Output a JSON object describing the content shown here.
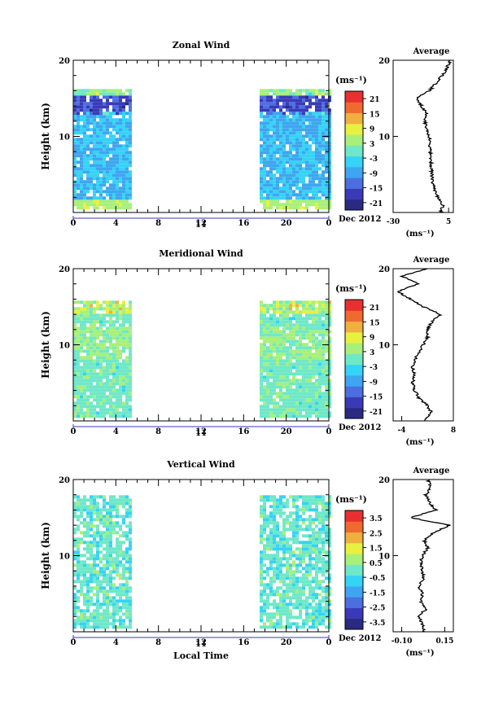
{
  "page_title": "",
  "date_label": "Dec 2012",
  "day_label": "11",
  "xlabel_bottom": "Local Time",
  "time_ticks": [
    "0",
    "4",
    "8",
    "12",
    "16",
    "20",
    "0"
  ],
  "height_ticks": [
    "20",
    "10"
  ],
  "height_label": "Height (km)",
  "unit_label": "(ms⁻¹)",
  "avg_title": "Average",
  "colors": {
    "ramp": [
      "#2a2a80",
      "#3a3ab8",
      "#4c6fe0",
      "#3fa5f0",
      "#35d3f5",
      "#6fe8c8",
      "#a8f07a",
      "#e8f040",
      "#f0b040",
      "#f06a30",
      "#e83030"
    ]
  },
  "chart_data": [
    {
      "type": "heatmap",
      "title": "Zonal Wind",
      "ylabel": "Height (km)",
      "ylim": [
        0,
        20
      ],
      "xlim_hours": [
        0,
        24
      ],
      "data_hours": [
        [
          0,
          5.5
        ],
        [
          17.5,
          24
        ]
      ],
      "colorbar": {
        "label": "(ms⁻¹)",
        "ticks": [
          "21",
          "15",
          "9",
          "3",
          "-3",
          "-9",
          "-15",
          "-21"
        ],
        "range": [
          -24,
          24
        ]
      },
      "average": {
        "xlim": [
          -30,
          8
        ],
        "xticks": [
          "-30",
          "5"
        ],
        "xlabel": "(ms⁻¹)",
        "height": [
          0,
          1,
          2,
          3,
          4,
          5,
          6,
          7,
          8,
          9,
          10,
          11,
          12,
          13,
          14,
          15,
          16,
          17,
          18,
          19,
          20
        ],
        "value": [
          0,
          1.5,
          -2,
          -4,
          -5,
          -5.5,
          -6,
          -6,
          -6.5,
          -7,
          -7,
          -9,
          -10,
          -9,
          -12,
          -15,
          -7,
          -3,
          1,
          4,
          6
        ]
      }
    },
    {
      "type": "heatmap",
      "title": "Meridional Wind",
      "ylabel": "Height (km)",
      "ylim": [
        0,
        20
      ],
      "xlim_hours": [
        0,
        24
      ],
      "data_hours": [
        [
          0,
          5.5
        ],
        [
          17.5,
          24
        ]
      ],
      "colorbar": {
        "label": "(ms⁻¹)",
        "ticks": [
          "21",
          "15",
          "9",
          "3",
          "-3",
          "-9",
          "-15",
          "-21"
        ],
        "range": [
          -24,
          24
        ]
      },
      "average": {
        "xlim": [
          -6,
          8
        ],
        "xticks": [
          "-4",
          "8"
        ],
        "xlabel": "(ms⁻¹)",
        "height": [
          0,
          1,
          2,
          3,
          4,
          5,
          6,
          7,
          8,
          9,
          10,
          11,
          12,
          13,
          14,
          15,
          16,
          17,
          18,
          19,
          20
        ],
        "value": [
          1,
          3,
          2,
          0,
          -1,
          -1.5,
          -1,
          -1.5,
          -1,
          0,
          1,
          2,
          2,
          3,
          5,
          1,
          -2,
          -5,
          0,
          -4,
          2
        ]
      }
    },
    {
      "type": "heatmap",
      "title": "Vertical Wind",
      "ylabel": "Height (km)",
      "xlabel": "Local Time",
      "ylim": [
        0,
        20
      ],
      "xlim_hours": [
        0,
        24
      ],
      "data_hours": [
        [
          0,
          5.5
        ],
        [
          17.5,
          24
        ]
      ],
      "colorbar": {
        "label": "(ms⁻¹)",
        "ticks": [
          "3.5",
          "2.5",
          "1.5",
          "0.5",
          "-0.5",
          "-1.5",
          "-2.5",
          "-3.5"
        ],
        "range": [
          -4,
          4
        ]
      },
      "average": {
        "xlim": [
          -0.15,
          0.2
        ],
        "xticks": [
          "-0.10",
          "0.15"
        ],
        "xlabel": "(ms⁻¹)",
        "height": [
          0,
          1,
          2,
          3,
          4,
          5,
          6,
          7,
          8,
          9,
          10,
          11,
          12,
          13,
          14,
          15,
          16,
          17,
          18,
          19,
          20
        ],
        "value": [
          0.03,
          0.02,
          0.0,
          0.04,
          0.01,
          0.02,
          0.0,
          0.03,
          0.02,
          0.01,
          0.02,
          0.05,
          0.03,
          0.08,
          0.18,
          -0.05,
          0.1,
          0.06,
          0.04,
          0.07,
          0.05
        ]
      }
    }
  ]
}
